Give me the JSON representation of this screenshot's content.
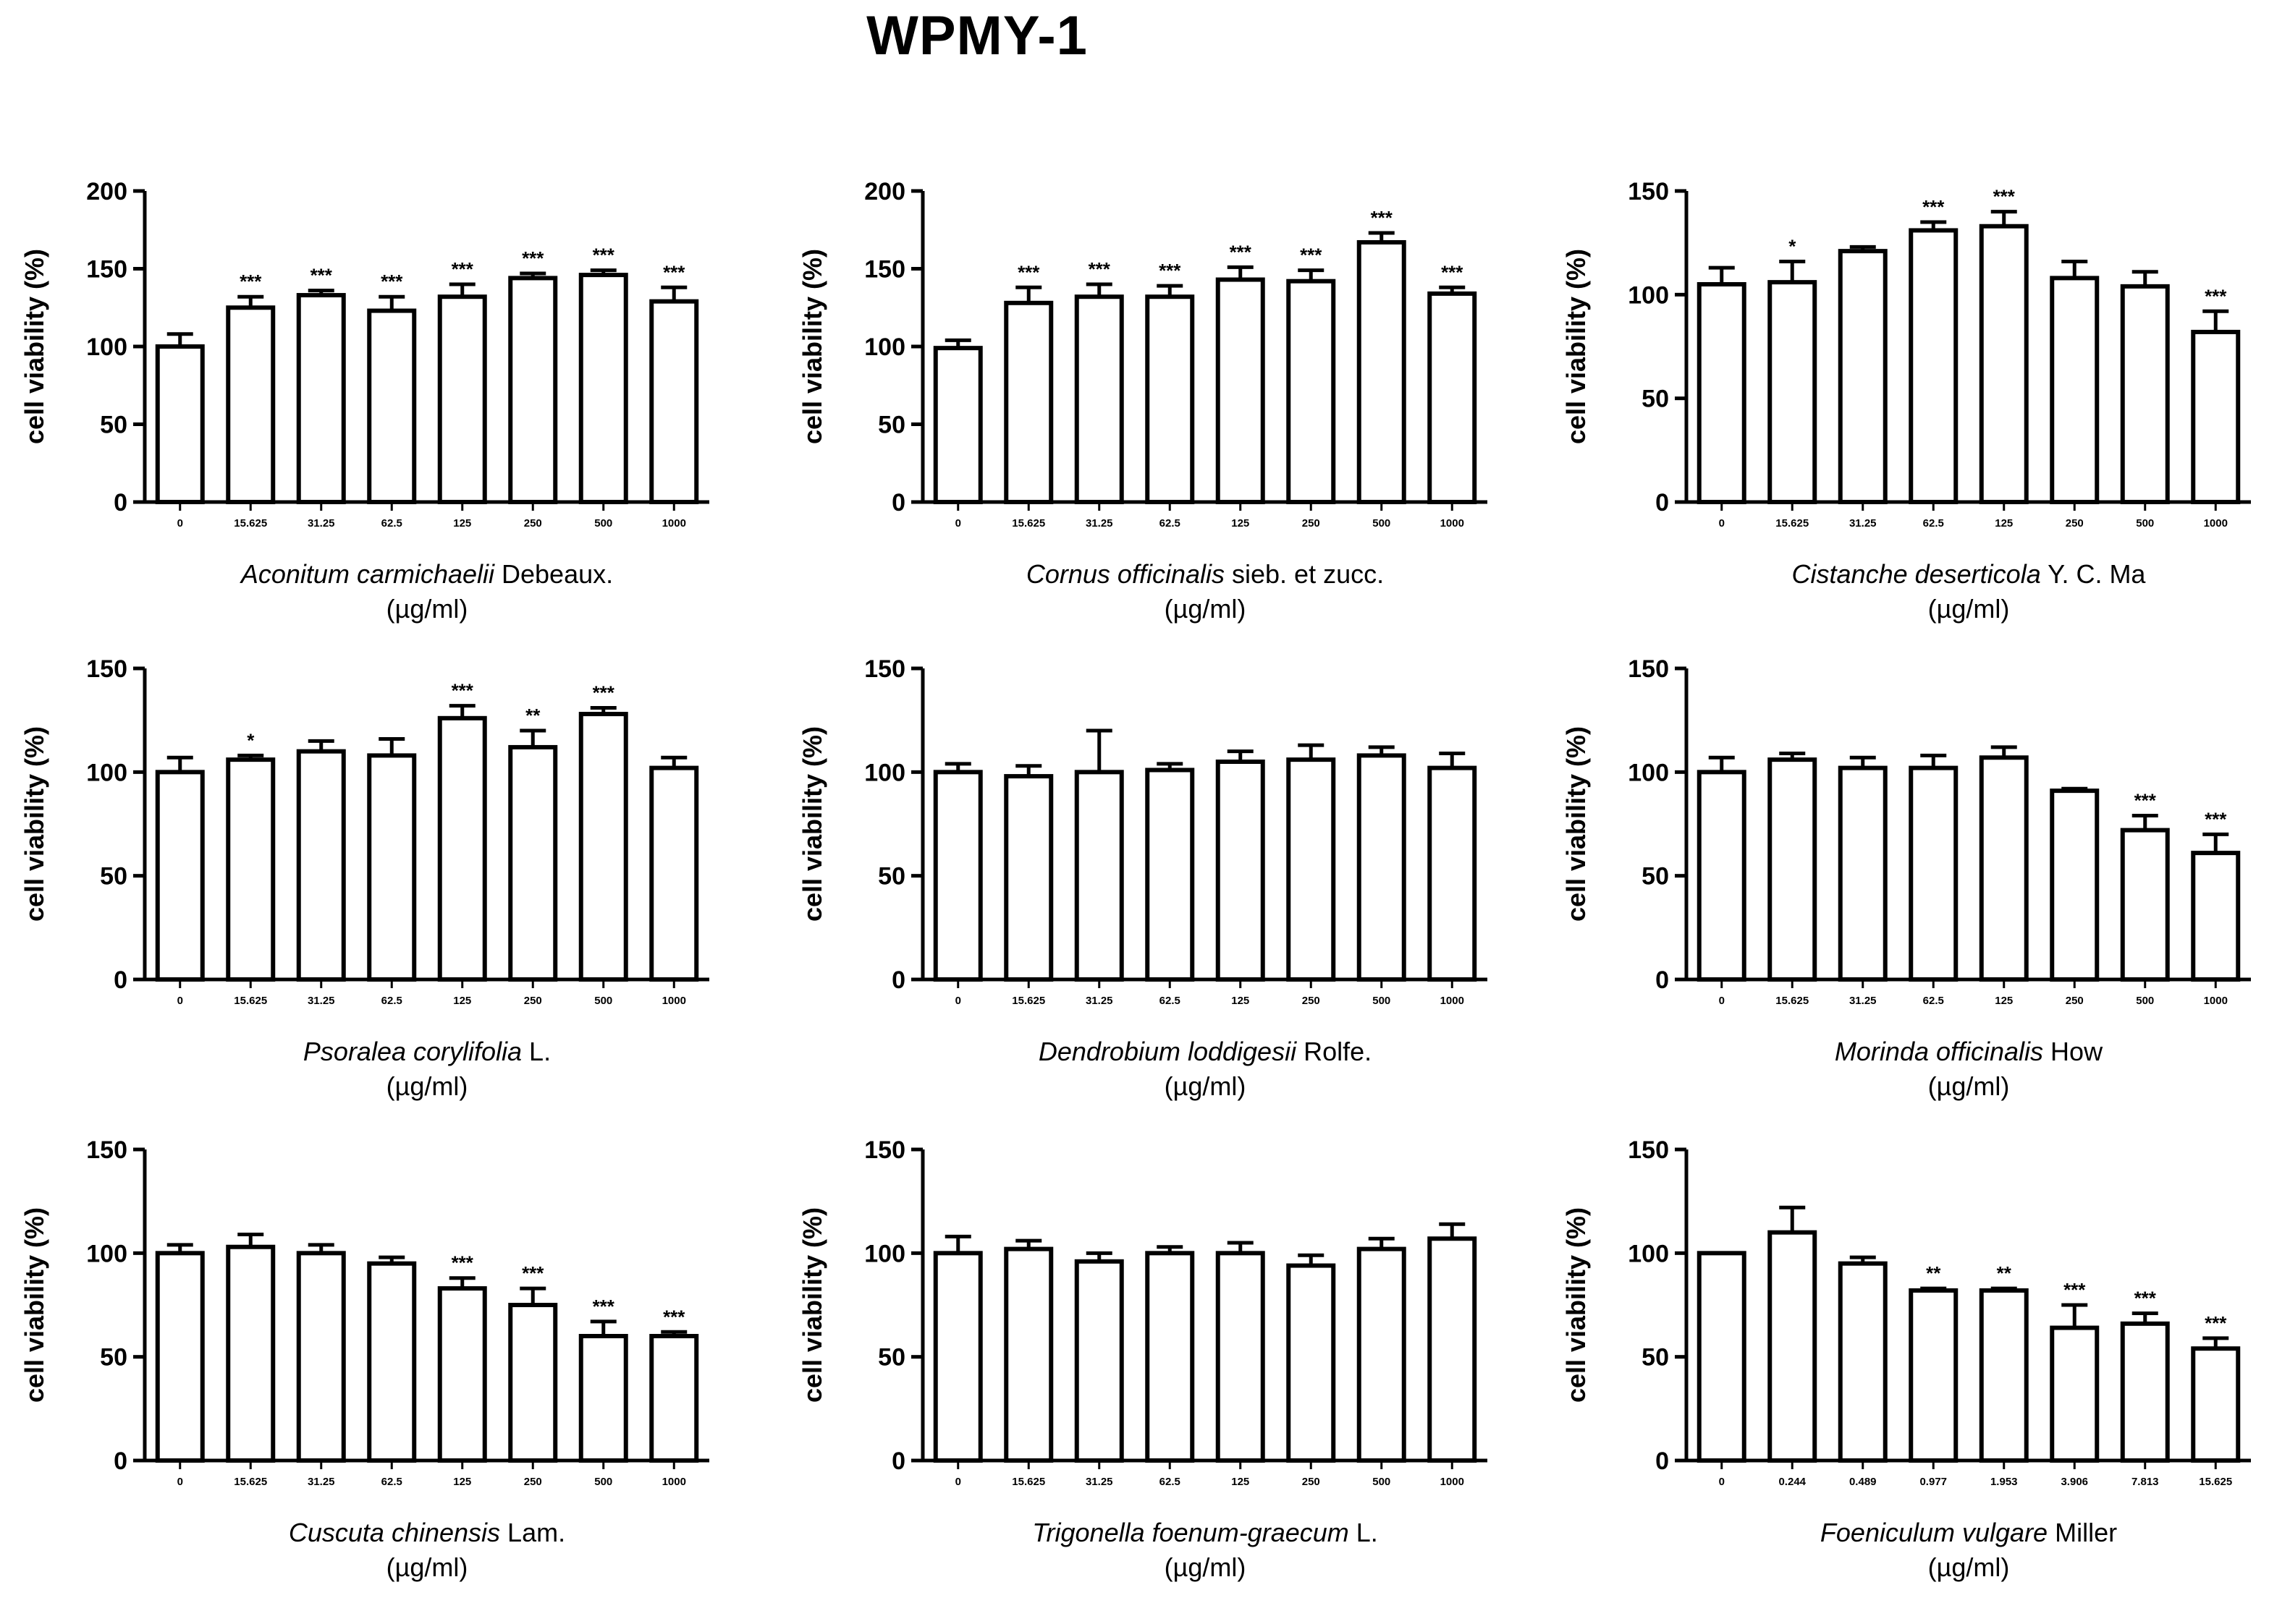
{
  "title": "WPMY-1",
  "chart_data": [
    {
      "type": "bar",
      "title": "",
      "species": "Aconitum carmichaelii",
      "authority": "Debeaux.",
      "xlabel_unit": "(µg/ml)",
      "ylabel": "cell viability (%)",
      "ylim": [
        0,
        200
      ],
      "yticks": [
        0,
        50,
        100,
        150,
        200
      ],
      "categories": [
        "0",
        "15.625",
        "31.25",
        "62.5",
        "125",
        "250",
        "500",
        "1000"
      ],
      "values": [
        100,
        125,
        133,
        123,
        132,
        144,
        146,
        129
      ],
      "errors": [
        8,
        7,
        3,
        9,
        8,
        3,
        3,
        9
      ],
      "significance": [
        "",
        "***",
        "***",
        "***",
        "***",
        "***",
        "***",
        "***"
      ]
    },
    {
      "type": "bar",
      "title": "",
      "species": "Cornus officinalis",
      "authority": "sieb. et zucc.",
      "xlabel_unit": "(µg/ml)",
      "ylabel": "cell viability (%)",
      "ylim": [
        0,
        200
      ],
      "yticks": [
        0,
        50,
        100,
        150,
        200
      ],
      "categories": [
        "0",
        "15.625",
        "31.25",
        "62.5",
        "125",
        "250",
        "500",
        "1000"
      ],
      "values": [
        99,
        128,
        132,
        132,
        143,
        142,
        167,
        134
      ],
      "errors": [
        5,
        10,
        8,
        7,
        8,
        7,
        6,
        4
      ],
      "significance": [
        "",
        "***",
        "***",
        "***",
        "***",
        "***",
        "***",
        "***"
      ]
    },
    {
      "type": "bar",
      "title": "",
      "species": "Cistanche deserticola",
      "authority": "Y. C. Ma",
      "xlabel_unit": "(µg/ml)",
      "ylabel": "cell viability (%)",
      "ylim": [
        0,
        150
      ],
      "yticks": [
        0,
        50,
        100,
        150
      ],
      "categories": [
        "0",
        "15.625",
        "31.25",
        "62.5",
        "125",
        "250",
        "500",
        "1000"
      ],
      "values": [
        105,
        106,
        121,
        131,
        133,
        108,
        104,
        82
      ],
      "errors": [
        8,
        10,
        2,
        4,
        7,
        8,
        7,
        10
      ],
      "significance": [
        "",
        "*",
        "",
        "***",
        "***",
        "",
        "",
        "***"
      ]
    },
    {
      "type": "bar",
      "title": "",
      "species": "Psoralea corylifolia",
      "authority": "L.",
      "xlabel_unit": "(µg/ml)",
      "ylabel": "cell viability (%)",
      "ylim": [
        0,
        150
      ],
      "yticks": [
        0,
        50,
        100,
        150
      ],
      "categories": [
        "0",
        "15.625",
        "31.25",
        "62.5",
        "125",
        "250",
        "500",
        "1000"
      ],
      "values": [
        100,
        106,
        110,
        108,
        126,
        112,
        128,
        102
      ],
      "errors": [
        7,
        2,
        5,
        8,
        6,
        8,
        3,
        5
      ],
      "significance": [
        "",
        "*",
        "",
        "",
        "***",
        "**",
        "***",
        ""
      ]
    },
    {
      "type": "bar",
      "title": "",
      "species": "Dendrobium loddigesii",
      "authority": "Rolfe.",
      "xlabel_unit": "(µg/ml)",
      "ylabel": "cell viability (%)",
      "ylim": [
        0,
        150
      ],
      "yticks": [
        0,
        50,
        100,
        150
      ],
      "categories": [
        "0",
        "15.625",
        "31.25",
        "62.5",
        "125",
        "250",
        "500",
        "1000"
      ],
      "values": [
        100,
        98,
        100,
        101,
        105,
        106,
        108,
        102
      ],
      "errors": [
        4,
        5,
        20,
        3,
        5,
        7,
        4,
        7
      ],
      "significance": [
        "",
        "",
        "",
        "",
        "",
        "",
        "",
        ""
      ]
    },
    {
      "type": "bar",
      "title": "",
      "species": "Morinda officinalis",
      "authority": "How",
      "xlabel_unit": "(µg/ml)",
      "ylabel": "cell viability (%)",
      "ylim": [
        0,
        150
      ],
      "yticks": [
        0,
        50,
        100,
        150
      ],
      "categories": [
        "0",
        "15.625",
        "31.25",
        "62.5",
        "125",
        "250",
        "500",
        "1000"
      ],
      "values": [
        100,
        106,
        102,
        102,
        107,
        91,
        72,
        61
      ],
      "errors": [
        7,
        3,
        5,
        6,
        5,
        1,
        7,
        9
      ],
      "significance": [
        "",
        "",
        "",
        "",
        "",
        "",
        "***",
        "***"
      ]
    },
    {
      "type": "bar",
      "title": "",
      "species": "Cuscuta chinensis",
      "authority": "Lam.",
      "xlabel_unit": "(µg/ml)",
      "ylabel": "cell viability (%)",
      "ylim": [
        0,
        150
      ],
      "yticks": [
        0,
        50,
        100,
        150
      ],
      "categories": [
        "0",
        "15.625",
        "31.25",
        "62.5",
        "125",
        "250",
        "500",
        "1000"
      ],
      "values": [
        100,
        103,
        100,
        95,
        83,
        75,
        60,
        60
      ],
      "errors": [
        4,
        6,
        4,
        3,
        5,
        8,
        7,
        2
      ],
      "significance": [
        "",
        "",
        "",
        "",
        "***",
        "***",
        "***",
        "***"
      ]
    },
    {
      "type": "bar",
      "title": "",
      "species": "Trigonella foenum-graecum",
      "authority": "L.",
      "xlabel_unit": "(µg/ml)",
      "ylabel": "cell viability (%)",
      "ylim": [
        0,
        150
      ],
      "yticks": [
        0,
        50,
        100,
        150
      ],
      "categories": [
        "0",
        "15.625",
        "31.25",
        "62.5",
        "125",
        "250",
        "500",
        "1000"
      ],
      "values": [
        100,
        102,
        96,
        100,
        100,
        94,
        102,
        107
      ],
      "errors": [
        8,
        4,
        4,
        3,
        5,
        5,
        5,
        7
      ],
      "significance": [
        "",
        "",
        "",
        "",
        "",
        "",
        "",
        ""
      ]
    },
    {
      "type": "bar",
      "title": "",
      "species": "Foeniculum vulgare",
      "authority": "Miller",
      "xlabel_unit": "(µg/ml)",
      "ylabel": "cell viability (%)",
      "ylim": [
        0,
        150
      ],
      "yticks": [
        0,
        50,
        100,
        150
      ],
      "categories": [
        "0",
        "0.244",
        "0.489",
        "0.977",
        "1.953",
        "3.906",
        "7.813",
        "15.625"
      ],
      "values": [
        100,
        110,
        95,
        82,
        82,
        64,
        66,
        54
      ],
      "errors": [
        0,
        12,
        3,
        1,
        1,
        11,
        5,
        5
      ],
      "significance": [
        "",
        "",
        "",
        "**",
        "**",
        "***",
        "***",
        "***"
      ]
    }
  ]
}
